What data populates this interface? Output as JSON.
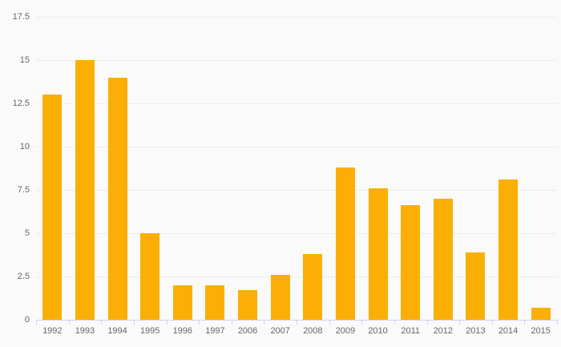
{
  "chart": {
    "background_color": "#fafafa",
    "bar_color": "#fbaf05",
    "grid_color": "#ececec",
    "axis_color": "#ccd6eb",
    "label_color": "#666666",
    "title": ""
  },
  "chart_data": {
    "type": "bar",
    "title": "",
    "xlabel": "",
    "ylabel": "",
    "categories": [
      "1992",
      "1993",
      "1994",
      "1995",
      "1996",
      "1997",
      "2006",
      "2007",
      "2008",
      "2009",
      "2010",
      "2011",
      "2012",
      "2013",
      "2014",
      "2015"
    ],
    "values": [
      13,
      15,
      14,
      5,
      2,
      2,
      1.7,
      2.6,
      3.8,
      8.8,
      7.6,
      6.6,
      7,
      3.9,
      8.1,
      0.7
    ],
    "ylim": [
      0,
      17.5
    ],
    "ytick_interval": 2.5,
    "ytick_labels": [
      "0",
      "2.5",
      "5",
      "7.5",
      "10",
      "12.5",
      "15",
      "17.5"
    ],
    "grid": true,
    "legend_position": "none"
  }
}
